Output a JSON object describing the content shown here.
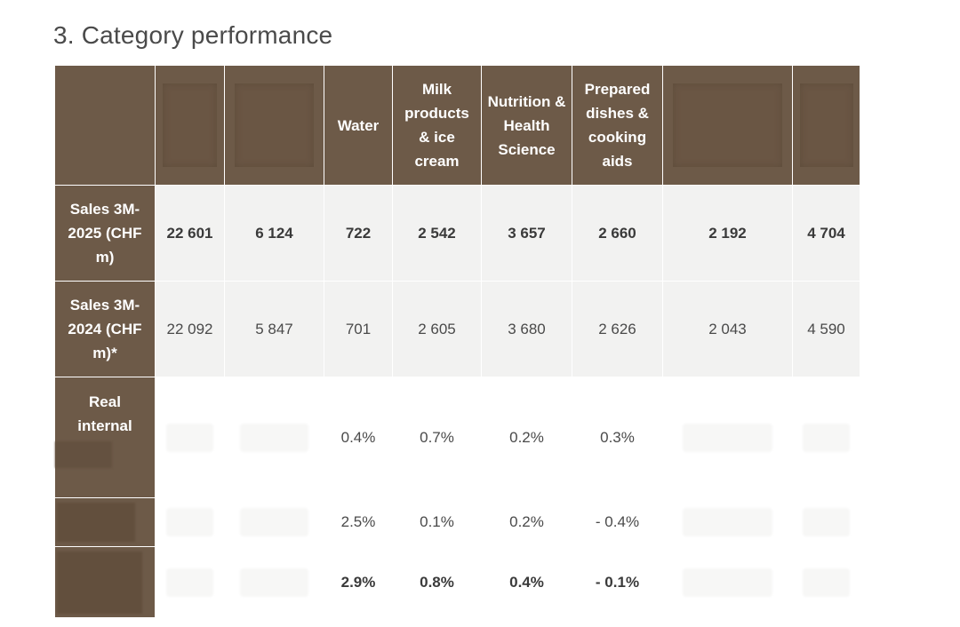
{
  "title": "3. Category performance",
  "headers": [
    "",
    "",
    "",
    "Water",
    "Milk products & ice cream",
    "Nutrition & Health Science",
    "Prepared dishes & cooking aids",
    "",
    ""
  ],
  "rows": [
    {
      "label_line1": "Sales 3M-",
      "label_line2": "2025 (CHF",
      "label_line3": "m)",
      "values": [
        "22 601",
        "6 124",
        "722",
        "2 542",
        "3 657",
        "2 660",
        "2 192",
        "4 704"
      ]
    },
    {
      "label_line1": "Sales 3M-",
      "label_line2": "2024 (CHF",
      "label_line3": "m)*",
      "values": [
        "22 092",
        "5 847",
        "701",
        "2 605",
        "3 680",
        "2 626",
        "2 043",
        "4 590"
      ]
    },
    {
      "label_line1": "Real",
      "label_line2": "internal",
      "values": [
        "",
        "",
        "0.4%",
        "0.7%",
        "0.2%",
        "0.3%",
        "",
        ""
      ]
    },
    {
      "values": [
        "",
        "",
        "2.5%",
        "0.1%",
        "0.2%",
        "- 0.4%",
        "",
        ""
      ]
    },
    {
      "values": [
        "",
        "",
        "2.9%",
        "0.8%",
        "0.4%",
        "- 0.1%",
        "",
        ""
      ]
    }
  ]
}
